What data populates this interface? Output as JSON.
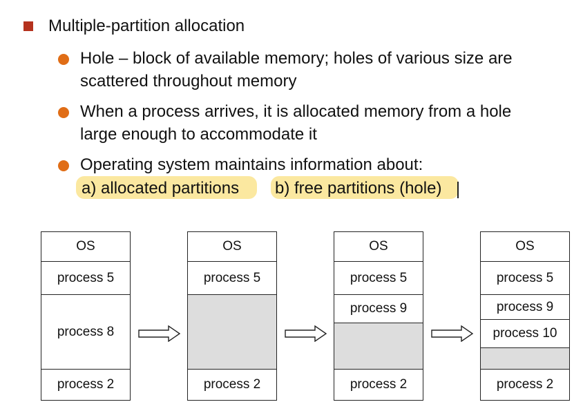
{
  "main_bullet": "Multiple-partition allocation",
  "sub_bullets": [
    {
      "lines": [
        "Hole – block of available memory; holes of various size are",
        "scattered throughout memory"
      ]
    },
    {
      "lines": [
        "When a process arrives, it is allocated memory from a hole",
        "large enough to accommodate it"
      ]
    },
    {
      "lines": [
        "Operating system maintains information about:"
      ]
    }
  ],
  "highlights": [
    "a) allocated partitions",
    "b) free partitions (hole)"
  ],
  "diagram": {
    "stages": [
      {
        "blocks": [
          "OS",
          "process 5",
          "process 8",
          "process 2"
        ]
      },
      {
        "blocks": [
          "OS",
          "process 5",
          "",
          "process 2"
        ]
      },
      {
        "blocks": [
          "OS",
          "process 5",
          "process 9",
          "",
          "process 2"
        ]
      },
      {
        "blocks": [
          "OS",
          "process 5",
          "process 9",
          "process 10",
          "",
          "process 2"
        ]
      }
    ]
  },
  "colors": {
    "main_bullet": "#b5321e",
    "sub_bullet": "#e06d16",
    "highlight": "#fbe8a0",
    "hole": "#dddddd"
  }
}
